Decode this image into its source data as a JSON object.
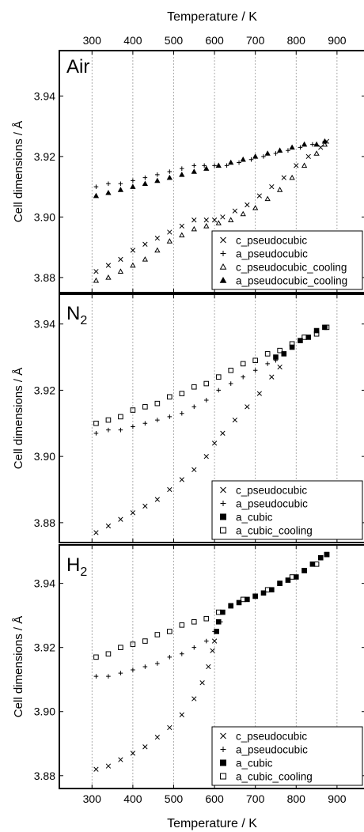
{
  "figure": {
    "top_axis_label": "Temperature / K",
    "bottom_axis_label": "Temperature / K",
    "y_axis_label": "Cell dimensions / Å"
  },
  "chart_data": [
    {
      "type": "scatter",
      "panel_label": "Air",
      "xlim": [
        220,
        970
      ],
      "ylim": [
        3.875,
        3.955
      ],
      "x_ticks": [
        300,
        400,
        500,
        600,
        700,
        800,
        900
      ],
      "y_ticks": [
        3.88,
        3.9,
        3.92,
        3.94
      ],
      "y_tick_labels": [
        "3.88",
        "3.90",
        "3.92",
        "3.94"
      ],
      "grid_x": true,
      "legend_position": "bottom-right",
      "series": [
        {
          "name": "c_pseudocubic",
          "marker": "x",
          "x": [
            310,
            340,
            370,
            400,
            430,
            460,
            490,
            520,
            550,
            580,
            600,
            620,
            650,
            680,
            710,
            740,
            770,
            800,
            830,
            860,
            875
          ],
          "y": [
            3.882,
            3.884,
            3.886,
            3.889,
            3.891,
            3.893,
            3.895,
            3.897,
            3.899,
            3.899,
            3.899,
            3.9,
            3.902,
            3.904,
            3.907,
            3.91,
            3.913,
            3.917,
            3.92,
            3.923,
            3.925
          ]
        },
        {
          "name": "a_pseudocubic",
          "marker": "+",
          "x": [
            310,
            340,
            370,
            400,
            430,
            460,
            490,
            520,
            550,
            575,
            600,
            630,
            660,
            690,
            720,
            750,
            780,
            810,
            840,
            870
          ],
          "y": [
            3.91,
            3.911,
            3.911,
            3.912,
            3.913,
            3.914,
            3.915,
            3.916,
            3.917,
            3.917,
            3.917,
            3.917,
            3.918,
            3.919,
            3.92,
            3.921,
            3.922,
            3.923,
            3.924,
            3.925
          ]
        },
        {
          "name": "c_pseudocubic_cooling",
          "marker": "triangle-open",
          "x": [
            310,
            340,
            370,
            400,
            430,
            460,
            490,
            520,
            550,
            580,
            610,
            640,
            670,
            700,
            730,
            760,
            790,
            820,
            850,
            870
          ],
          "y": [
            3.879,
            3.88,
            3.882,
            3.884,
            3.886,
            3.889,
            3.892,
            3.894,
            3.896,
            3.897,
            3.898,
            3.899,
            3.901,
            3.903,
            3.906,
            3.909,
            3.913,
            3.917,
            3.921,
            3.924
          ]
        },
        {
          "name": "a_pseudocubic_cooling",
          "marker": "triangle-filled",
          "x": [
            310,
            340,
            370,
            400,
            430,
            460,
            490,
            520,
            550,
            580,
            610,
            640,
            670,
            700,
            730,
            760,
            790,
            820,
            850,
            870
          ],
          "y": [
            3.907,
            3.908,
            3.909,
            3.91,
            3.911,
            3.912,
            3.913,
            3.914,
            3.915,
            3.916,
            3.917,
            3.918,
            3.919,
            3.92,
            3.921,
            3.922,
            3.923,
            3.924,
            3.924,
            3.925
          ]
        }
      ]
    },
    {
      "type": "scatter",
      "panel_label": "N",
      "panel_label_sub": "2",
      "xlim": [
        220,
        970
      ],
      "ylim": [
        3.874,
        3.949
      ],
      "x_ticks": [
        300,
        400,
        500,
        600,
        700,
        800,
        900
      ],
      "y_ticks": [
        3.88,
        3.9,
        3.92,
        3.94
      ],
      "y_tick_labels": [
        "3.88",
        "3.90",
        "3.92",
        "3.94"
      ],
      "grid_x": true,
      "legend_position": "bottom-right",
      "series": [
        {
          "name": "c_pseudocubic",
          "marker": "x",
          "x": [
            310,
            340,
            370,
            400,
            430,
            460,
            490,
            520,
            550,
            580,
            600,
            620,
            650,
            680,
            710,
            740,
            760
          ],
          "y": [
            3.877,
            3.879,
            3.881,
            3.883,
            3.885,
            3.887,
            3.89,
            3.893,
            3.896,
            3.9,
            3.904,
            3.907,
            3.911,
            3.915,
            3.919,
            3.924,
            3.927
          ]
        },
        {
          "name": "a_pseudocubic",
          "marker": "+",
          "x": [
            310,
            340,
            370,
            400,
            430,
            460,
            490,
            520,
            550,
            580,
            610,
            640,
            670,
            700,
            730,
            750
          ],
          "y": [
            3.907,
            3.908,
            3.908,
            3.909,
            3.91,
            3.911,
            3.912,
            3.913,
            3.915,
            3.917,
            3.92,
            3.922,
            3.924,
            3.926,
            3.928,
            3.929
          ]
        },
        {
          "name": "a_cubic",
          "marker": "square-filled",
          "x": [
            750,
            770,
            790,
            810,
            830,
            850,
            870
          ],
          "y": [
            3.93,
            3.931,
            3.933,
            3.935,
            3.936,
            3.938,
            3.939
          ]
        },
        {
          "name": "a_cubic_cooling",
          "marker": "square-open",
          "x": [
            310,
            340,
            370,
            400,
            430,
            460,
            490,
            520,
            550,
            580,
            610,
            640,
            670,
            700,
            730,
            760,
            790,
            820,
            850,
            875
          ],
          "y": [
            3.91,
            3.911,
            3.912,
            3.914,
            3.915,
            3.916,
            3.918,
            3.919,
            3.921,
            3.922,
            3.924,
            3.926,
            3.928,
            3.929,
            3.931,
            3.932,
            3.934,
            3.936,
            3.937,
            3.939
          ]
        }
      ]
    },
    {
      "type": "scatter",
      "panel_label": "H",
      "panel_label_sub": "2",
      "xlim": [
        220,
        970
      ],
      "ylim": [
        3.876,
        3.952
      ],
      "x_ticks": [
        300,
        400,
        500,
        600,
        700,
        800,
        900
      ],
      "x_tick_labels": [
        "300",
        "400",
        "500",
        "600",
        "700",
        "800",
        "900"
      ],
      "y_ticks": [
        3.88,
        3.9,
        3.92,
        3.94
      ],
      "y_tick_labels": [
        "3.88",
        "3.90",
        "3.92",
        "3.94"
      ],
      "grid_x": true,
      "legend_position": "bottom-right",
      "series": [
        {
          "name": "c_pseudocubic",
          "marker": "x",
          "x": [
            310,
            340,
            370,
            400,
            430,
            460,
            490,
            520,
            550,
            570,
            585,
            595,
            600,
            605,
            610
          ],
          "y": [
            3.882,
            3.883,
            3.885,
            3.887,
            3.889,
            3.892,
            3.895,
            3.899,
            3.904,
            3.909,
            3.914,
            3.919,
            3.922,
            3.925,
            3.928
          ]
        },
        {
          "name": "a_pseudocubic",
          "marker": "+",
          "x": [
            310,
            340,
            370,
            400,
            430,
            460,
            490,
            520,
            550,
            580,
            600,
            615
          ],
          "y": [
            3.911,
            3.911,
            3.912,
            3.913,
            3.914,
            3.915,
            3.917,
            3.918,
            3.92,
            3.922,
            3.925,
            3.928
          ]
        },
        {
          "name": "a_cubic",
          "marker": "square-filled",
          "x": [
            605,
            610,
            620,
            640,
            660,
            680,
            700,
            720,
            740,
            760,
            780,
            800,
            820,
            840,
            860,
            875
          ],
          "y": [
            3.925,
            3.928,
            3.931,
            3.933,
            3.934,
            3.935,
            3.936,
            3.937,
            3.938,
            3.94,
            3.941,
            3.942,
            3.944,
            3.946,
            3.948,
            3.949
          ]
        },
        {
          "name": "a_cubic_cooling",
          "marker": "square-open",
          "x": [
            310,
            340,
            370,
            400,
            430,
            460,
            490,
            520,
            550,
            580,
            610,
            640,
            670,
            700,
            730,
            760,
            790,
            820,
            850,
            875
          ],
          "y": [
            3.917,
            3.918,
            3.92,
            3.921,
            3.922,
            3.924,
            3.925,
            3.927,
            3.928,
            3.929,
            3.931,
            3.933,
            3.935,
            3.936,
            3.938,
            3.94,
            3.942,
            3.944,
            3.946,
            3.949
          ]
        }
      ]
    }
  ]
}
